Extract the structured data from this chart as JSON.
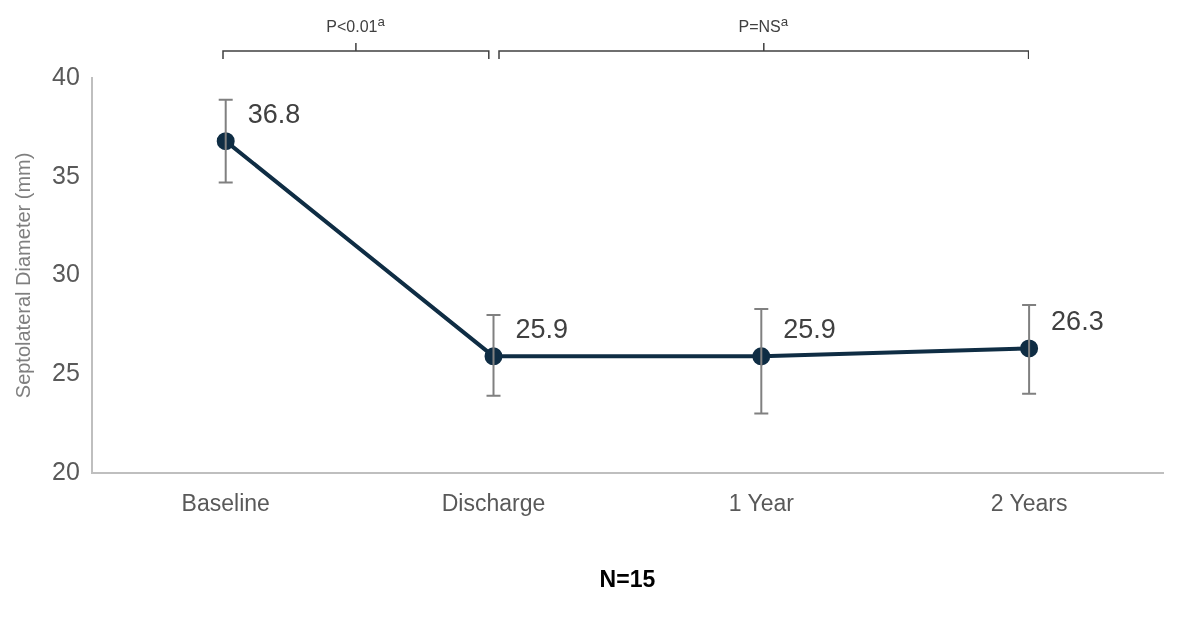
{
  "chart_data": {
    "type": "line",
    "ylabel": "Septolateral Diameter (mm)",
    "xlabel": "N=15",
    "categories": [
      "Baseline",
      "Discharge",
      "1 Year",
      "2 Years"
    ],
    "values": [
      36.8,
      25.9,
      25.9,
      26.3
    ],
    "errors": [
      [
        34.7,
        38.9
      ],
      [
        23.9,
        28.0
      ],
      [
        23.0,
        28.3
      ],
      [
        24.0,
        28.5
      ]
    ],
    "color": "#0f2d44",
    "marker": "circle",
    "line_style": "solid",
    "data_labels": true,
    "ylim": [
      20,
      40
    ],
    "yticks": [
      20,
      25,
      30,
      35,
      40
    ],
    "grid": false,
    "legend": false,
    "annotations": [
      "P<0.01$^{a}$",
      "P=NS$^{a}$"
    ]
  }
}
